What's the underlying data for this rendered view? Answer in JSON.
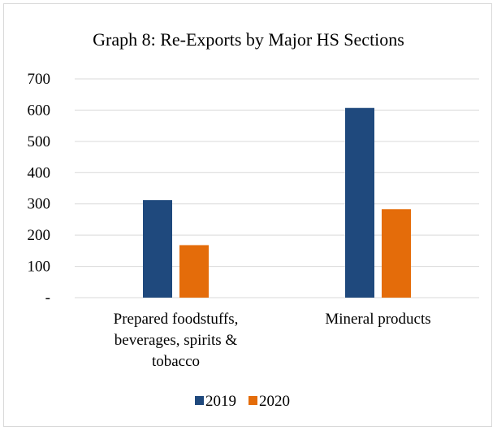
{
  "chart_data": {
    "type": "bar",
    "title": "Graph 8: Re-Exports by Major HS Sections",
    "xlabel": "",
    "ylabel": "",
    "categories": [
      [
        "Prepared foodstuffs,",
        "beverages, spirits &",
        "tobacco"
      ],
      [
        "Mineral products"
      ]
    ],
    "series": [
      {
        "name": "2019",
        "color": "#1f497d",
        "values": [
          312,
          607
        ]
      },
      {
        "name": "2020",
        "color": "#e46c0a",
        "values": [
          168,
          283
        ]
      }
    ],
    "ylim": [
      0,
      700
    ],
    "yticks": [
      {
        "value": 0,
        "label": "-"
      },
      {
        "value": 100,
        "label": "100"
      },
      {
        "value": 200,
        "label": "200"
      },
      {
        "value": 300,
        "label": "300"
      },
      {
        "value": 400,
        "label": "400"
      },
      {
        "value": 500,
        "label": "500"
      },
      {
        "value": 600,
        "label": "600"
      },
      {
        "value": 700,
        "label": "700"
      }
    ],
    "grid": true,
    "legend_position": "bottom"
  }
}
